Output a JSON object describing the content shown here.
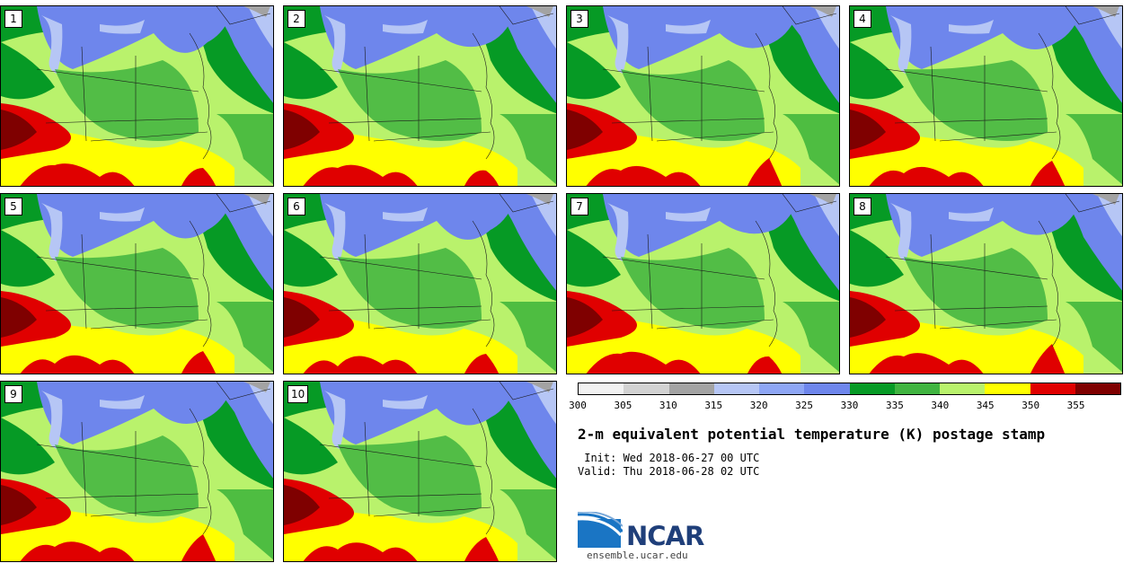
{
  "panels": [
    {
      "label": "1"
    },
    {
      "label": "2"
    },
    {
      "label": "3"
    },
    {
      "label": "4"
    },
    {
      "label": "5"
    },
    {
      "label": "6"
    },
    {
      "label": "7"
    },
    {
      "label": "8"
    },
    {
      "label": "9"
    },
    {
      "label": "10"
    }
  ],
  "colorbar": {
    "ticks": [
      "300",
      "305",
      "310",
      "315",
      "320",
      "325",
      "330",
      "335",
      "340",
      "345",
      "350",
      "355"
    ],
    "colors": [
      "#f2f2f2",
      "#d2d2d2",
      "#a3a3a3",
      "#b6c6f5",
      "#8ea6f5",
      "#6e86ec",
      "#069a25",
      "#40b440",
      "#b9f26c",
      "#ffff00",
      "#e00000",
      "#7f0000"
    ]
  },
  "title": "2-m equivalent potential temperature (K) postage stamp",
  "init_line": " Init: Wed 2018-06-27 00 UTC",
  "valid_line": "Valid: Thu 2018-06-28 02 UTC",
  "logo": {
    "name": "NCAR",
    "url": "ensemble.ucar.edu"
  },
  "map_colors": {
    "land_base": "#b9f26c",
    "cool_band": "#6e86ec",
    "coastal_band": "#069a25",
    "moist_patch": "#40b440",
    "warm": "#ffff00",
    "hot": "#e00000",
    "hottest": "#7f0000",
    "lakes": "#b6c6f5",
    "canada_gray": "#a3a3a3"
  }
}
